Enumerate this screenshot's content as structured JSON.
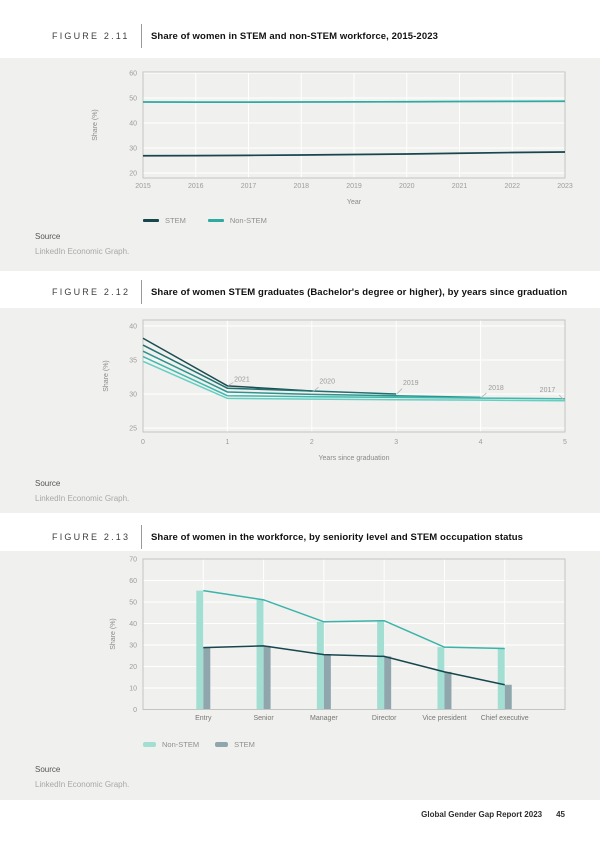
{
  "page": {
    "footer_report": "Global Gender Gap Report 2023",
    "footer_page": "45"
  },
  "figures": [
    {
      "label": "FIGURE 2.11",
      "title": "Share of women in STEM and non-STEM workforce, 2015-2023",
      "source_label": "Source",
      "source_text": "LinkedIn Economic Graph.",
      "chart_data": {
        "type": "line",
        "x": [
          2015,
          2016,
          2017,
          2018,
          2019,
          2020,
          2021,
          2022,
          2023
        ],
        "series": [
          {
            "name": "STEM",
            "color": "#17464e",
            "values": [
              26.9,
              26.95,
              27.05,
              27.2,
              27.4,
              27.6,
              27.9,
              28.2,
              28.4
            ]
          },
          {
            "name": "Non-STEM",
            "color": "#2faaa3",
            "values": [
              48.4,
              48.35,
              48.35,
              48.4,
              48.45,
              48.5,
              48.6,
              48.65,
              48.7
            ]
          }
        ],
        "xlabel": "Year",
        "ylabel": "Share (%)",
        "ylim": [
          20,
          60
        ],
        "yticks": [
          20,
          30,
          40,
          50,
          60
        ],
        "grid": true,
        "legend_position": "bottom"
      }
    },
    {
      "label": "FIGURE 2.12",
      "title": "Share of women STEM graduates (Bachelor's degree or higher), by years since graduation",
      "source_label": "Source",
      "source_text": "LinkedIn Economic Graph.",
      "chart_data": {
        "type": "line",
        "xlabel": "Years since graduation",
        "ylabel": "Share (%)",
        "xlim": [
          0,
          5
        ],
        "xticks": [
          0,
          1,
          2,
          3,
          4,
          5
        ],
        "ylim": [
          25,
          40
        ],
        "yticks": [
          25,
          30,
          35,
          40
        ],
        "grid": true,
        "series": [
          {
            "name": "2021",
            "color": "#1b4c52",
            "x": [
              0,
              1,
              2
            ],
            "values": [
              38.2,
              31.2,
              30.45
            ],
            "label_pos": [
              1.08,
              31.85
            ],
            "leader": [
              [
                1.01,
                31.25
              ],
              [
                1.07,
                31.7
              ]
            ]
          },
          {
            "name": "2020",
            "color": "#20706f",
            "x": [
              0,
              1,
              2,
              3
            ],
            "values": [
              37.2,
              30.85,
              30.45,
              30.0
            ],
            "label_pos": [
              2.09,
              31.55
            ],
            "leader": [
              [
                2.02,
                30.4
              ],
              [
                2.08,
                31.0
              ]
            ]
          },
          {
            "name": "2019",
            "color": "#2e938d",
            "x": [
              0,
              1,
              2,
              3,
              4
            ],
            "values": [
              36.3,
              30.3,
              29.95,
              29.75,
              29.5
            ],
            "label_pos": [
              3.08,
              31.3
            ],
            "leader": [
              [
                3.01,
                30.05
              ],
              [
                3.07,
                30.8
              ]
            ]
          },
          {
            "name": "2018",
            "color": "#3fb9ae",
            "x": [
              0,
              1,
              2,
              3,
              4,
              5
            ],
            "values": [
              35.5,
              29.75,
              29.6,
              29.5,
              29.4,
              29.3
            ],
            "label_pos": [
              4.09,
              30.6
            ],
            "leader": [
              [
                4.01,
                29.5
              ],
              [
                4.07,
                30.15
              ]
            ]
          },
          {
            "name": "2017",
            "color": "#66cec1",
            "x": [
              0,
              1,
              2,
              3,
              4,
              5
            ],
            "values": [
              34.8,
              29.35,
              29.25,
              29.15,
              29.1,
              29.0
            ],
            "label_pos": [
              4.7,
              30.3
            ],
            "leader": [
              [
                4.93,
                29.85
              ],
              [
                4.99,
                29.1
              ]
            ]
          }
        ]
      }
    },
    {
      "label": "FIGURE 2.13",
      "title": "Share of women in the workforce, by seniority level and STEM occupation status",
      "source_label": "Source",
      "source_text": "LinkedIn Economic Graph.",
      "chart_data": {
        "type": "bar-line",
        "categories": [
          "Entry",
          "Senior",
          "Manager",
          "Director",
          "Vice president",
          "Chief executive"
        ],
        "series": [
          {
            "name": "Non-STEM",
            "bar_color": "#a3ded3",
            "line_color": "#3bb3a9",
            "values": [
              55.3,
              51.0,
              40.8,
              41.3,
              29.0,
              28.4
            ]
          },
          {
            "name": "STEM",
            "bar_color": "#90a6ad",
            "line_color": "#17464e",
            "values": [
              28.8,
              29.6,
              25.5,
              24.7,
              17.5,
              11.5
            ]
          }
        ],
        "ylabel": "Share (%)",
        "ylim": [
          0,
          70
        ],
        "yticks": [
          0,
          10,
          20,
          30,
          40,
          50,
          60,
          70
        ],
        "grid": true,
        "legend_position": "bottom"
      }
    }
  ]
}
